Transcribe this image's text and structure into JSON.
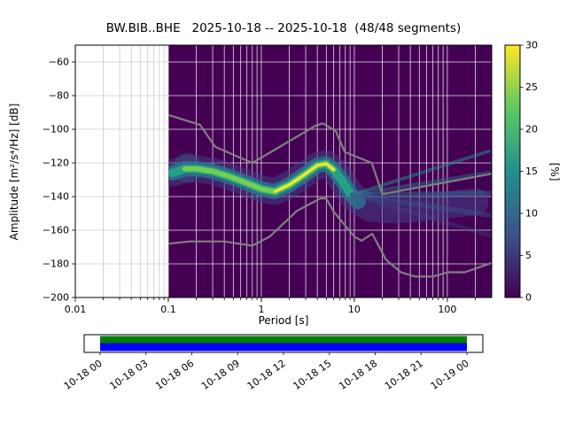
{
  "chart_data": {
    "type": "heatmap",
    "title": "BW.BIB..BHE   2025-10-18 -- 2025-10-18  (48/48 segments)",
    "station": "BW.BIB..BHE",
    "date_range": "2025-10-18 -- 2025-10-18",
    "segments": "48/48",
    "xlabel": "Period [s]",
    "ylabel": "Amplitude [m²/s⁴/Hz] [dB]",
    "xscale": "log",
    "xlim": [
      0.01,
      300
    ],
    "ylim": [
      -200,
      -50
    ],
    "grid": true,
    "data_period_min": 0.1,
    "background_value_color": "#440154",
    "xticks": [
      {
        "value": 0.01,
        "label": "0.01"
      },
      {
        "value": 0.1,
        "label": "0.1"
      },
      {
        "value": 1,
        "label": "1"
      },
      {
        "value": 10,
        "label": "10"
      },
      {
        "value": 100,
        "label": "100"
      }
    ],
    "yticks": [
      {
        "value": -60,
        "label": "−60"
      },
      {
        "value": -80,
        "label": "−80"
      },
      {
        "value": -100,
        "label": "−100"
      },
      {
        "value": -120,
        "label": "−120"
      },
      {
        "value": -140,
        "label": "−140"
      },
      {
        "value": -160,
        "label": "−160"
      },
      {
        "value": -180,
        "label": "−180"
      },
      {
        "value": -200,
        "label": "−200"
      }
    ],
    "colormap": {
      "name": "viridis",
      "stops": [
        {
          "at": 0,
          "color": "#440154"
        },
        {
          "at": 0.25,
          "color": "#3b528b"
        },
        {
          "at": 0.5,
          "color": "#21918c"
        },
        {
          "at": 0.75,
          "color": "#5ec962"
        },
        {
          "at": 1,
          "color": "#fde725"
        }
      ]
    },
    "colorbar": {
      "label": "[%]",
      "min": 0,
      "max": 30,
      "ticks": [
        {
          "value": 0,
          "label": "0"
        },
        {
          "value": 5,
          "label": "5"
        },
        {
          "value": 10,
          "label": "10"
        },
        {
          "value": 15,
          "label": "15"
        },
        {
          "value": 20,
          "label": "20"
        },
        {
          "value": 25,
          "label": "25"
        },
        {
          "value": 30,
          "label": "30"
        }
      ]
    },
    "psd_mode_curve": {
      "periods": [
        0.11,
        0.15,
        0.2,
        0.3,
        0.45,
        0.7,
        1.0,
        1.4,
        2.0,
        3.0,
        4.0,
        5.0,
        6.0,
        7.5,
        9.0,
        11,
        15,
        25,
        50,
        100,
        200
      ],
      "db": [
        -126,
        -123.5,
        -123.5,
        -125,
        -128,
        -132,
        -135.5,
        -137,
        -133,
        -126.5,
        -121.5,
        -120.5,
        -124,
        -131,
        -138,
        -143,
        -147,
        -148,
        -147,
        -145,
        -143
      ],
      "peak_percent": 30,
      "peak_period_range": [
        2.5,
        5.5
      ]
    },
    "noise_models": {
      "color": "#808080",
      "high": {
        "periods": [
          0.1,
          0.22,
          0.32,
          0.8,
          3.8,
          4.6,
          6.3,
          7.9,
          15.4,
          20,
          300
        ],
        "db": [
          -91.5,
          -97.4,
          -110.5,
          -120,
          -98,
          -96.5,
          -101,
          -113.5,
          -120,
          -138.5,
          -126.5
        ]
      },
      "low": {
        "periods": [
          0.1,
          0.17,
          0.4,
          0.8,
          1.24,
          2.4,
          4.3,
          5,
          6,
          10,
          12,
          15.6,
          21.9,
          31.6,
          45,
          70,
          101,
          154,
          300
        ],
        "db": [
          -168,
          -166.7,
          -166.7,
          -169.2,
          -163.7,
          -148.6,
          -141.1,
          -141.1,
          -149,
          -163.8,
          -166.2,
          -162.1,
          -177.5,
          -185,
          -187.5,
          -187.5,
          -185,
          -185,
          -179.4
        ]
      }
    },
    "bands": [
      {
        "width_db": 16,
        "color": "#414487",
        "opacity": 0.5,
        "pmin": 0.1,
        "pmax": 300
      },
      {
        "width_db": 9,
        "color": "#2a788e",
        "opacity": 0.8,
        "pmin": 0.1,
        "pmax": 12
      },
      {
        "width_db": 5,
        "color": "#22a884",
        "opacity": 0.9,
        "pmin": 0.11,
        "pmax": 9
      },
      {
        "width_db": 3,
        "color": "#7ad151",
        "opacity": 0.95,
        "pmin": 0.13,
        "pmax": 7
      },
      {
        "width_db": 1.5,
        "color": "#fde725",
        "opacity": 1,
        "pmin": 1.2,
        "pmax": 6
      }
    ],
    "fan_streaks": [
      {
        "from": {
          "period": 9.5,
          "db": -139
        },
        "to": {
          "period": 280,
          "db": -113
        },
        "color": "#21918c",
        "opacity": 0.5,
        "width_db": 2
      },
      {
        "from": {
          "period": 9.5,
          "db": -139
        },
        "to": {
          "period": 280,
          "db": -126
        },
        "color": "#2a788e",
        "opacity": 0.45,
        "width_db": 2.5
      },
      {
        "from": {
          "period": 9.5,
          "db": -139
        },
        "to": {
          "period": 280,
          "db": -138
        },
        "color": "#31688e",
        "opacity": 0.5,
        "width_db": 3
      },
      {
        "from": {
          "period": 9.5,
          "db": -139
        },
        "to": {
          "period": 280,
          "db": -151
        },
        "color": "#355f8d",
        "opacity": 0.4,
        "width_db": 3
      },
      {
        "from": {
          "period": 9.5,
          "db": -139
        },
        "to": {
          "period": 280,
          "db": -163
        },
        "color": "#3b528b",
        "opacity": 0.3,
        "width_db": 2.5
      }
    ],
    "left_blob": {
      "period": 0.16,
      "db": -123,
      "spread_db": 9,
      "color": "#2a788e",
      "opacity": 0.35
    }
  },
  "timeline": {
    "labels": [
      "10-18 00",
      "10-18 03",
      "10-18 06",
      "10-18 09",
      "10-18 12",
      "10-18 15",
      "10-18 18",
      "10-18 21",
      "10-19 00"
    ],
    "colors": {
      "green": "#008000",
      "blue": "#0000ff"
    },
    "coverage": {
      "start_frac": 0.04,
      "end_frac": 0.96
    }
  }
}
